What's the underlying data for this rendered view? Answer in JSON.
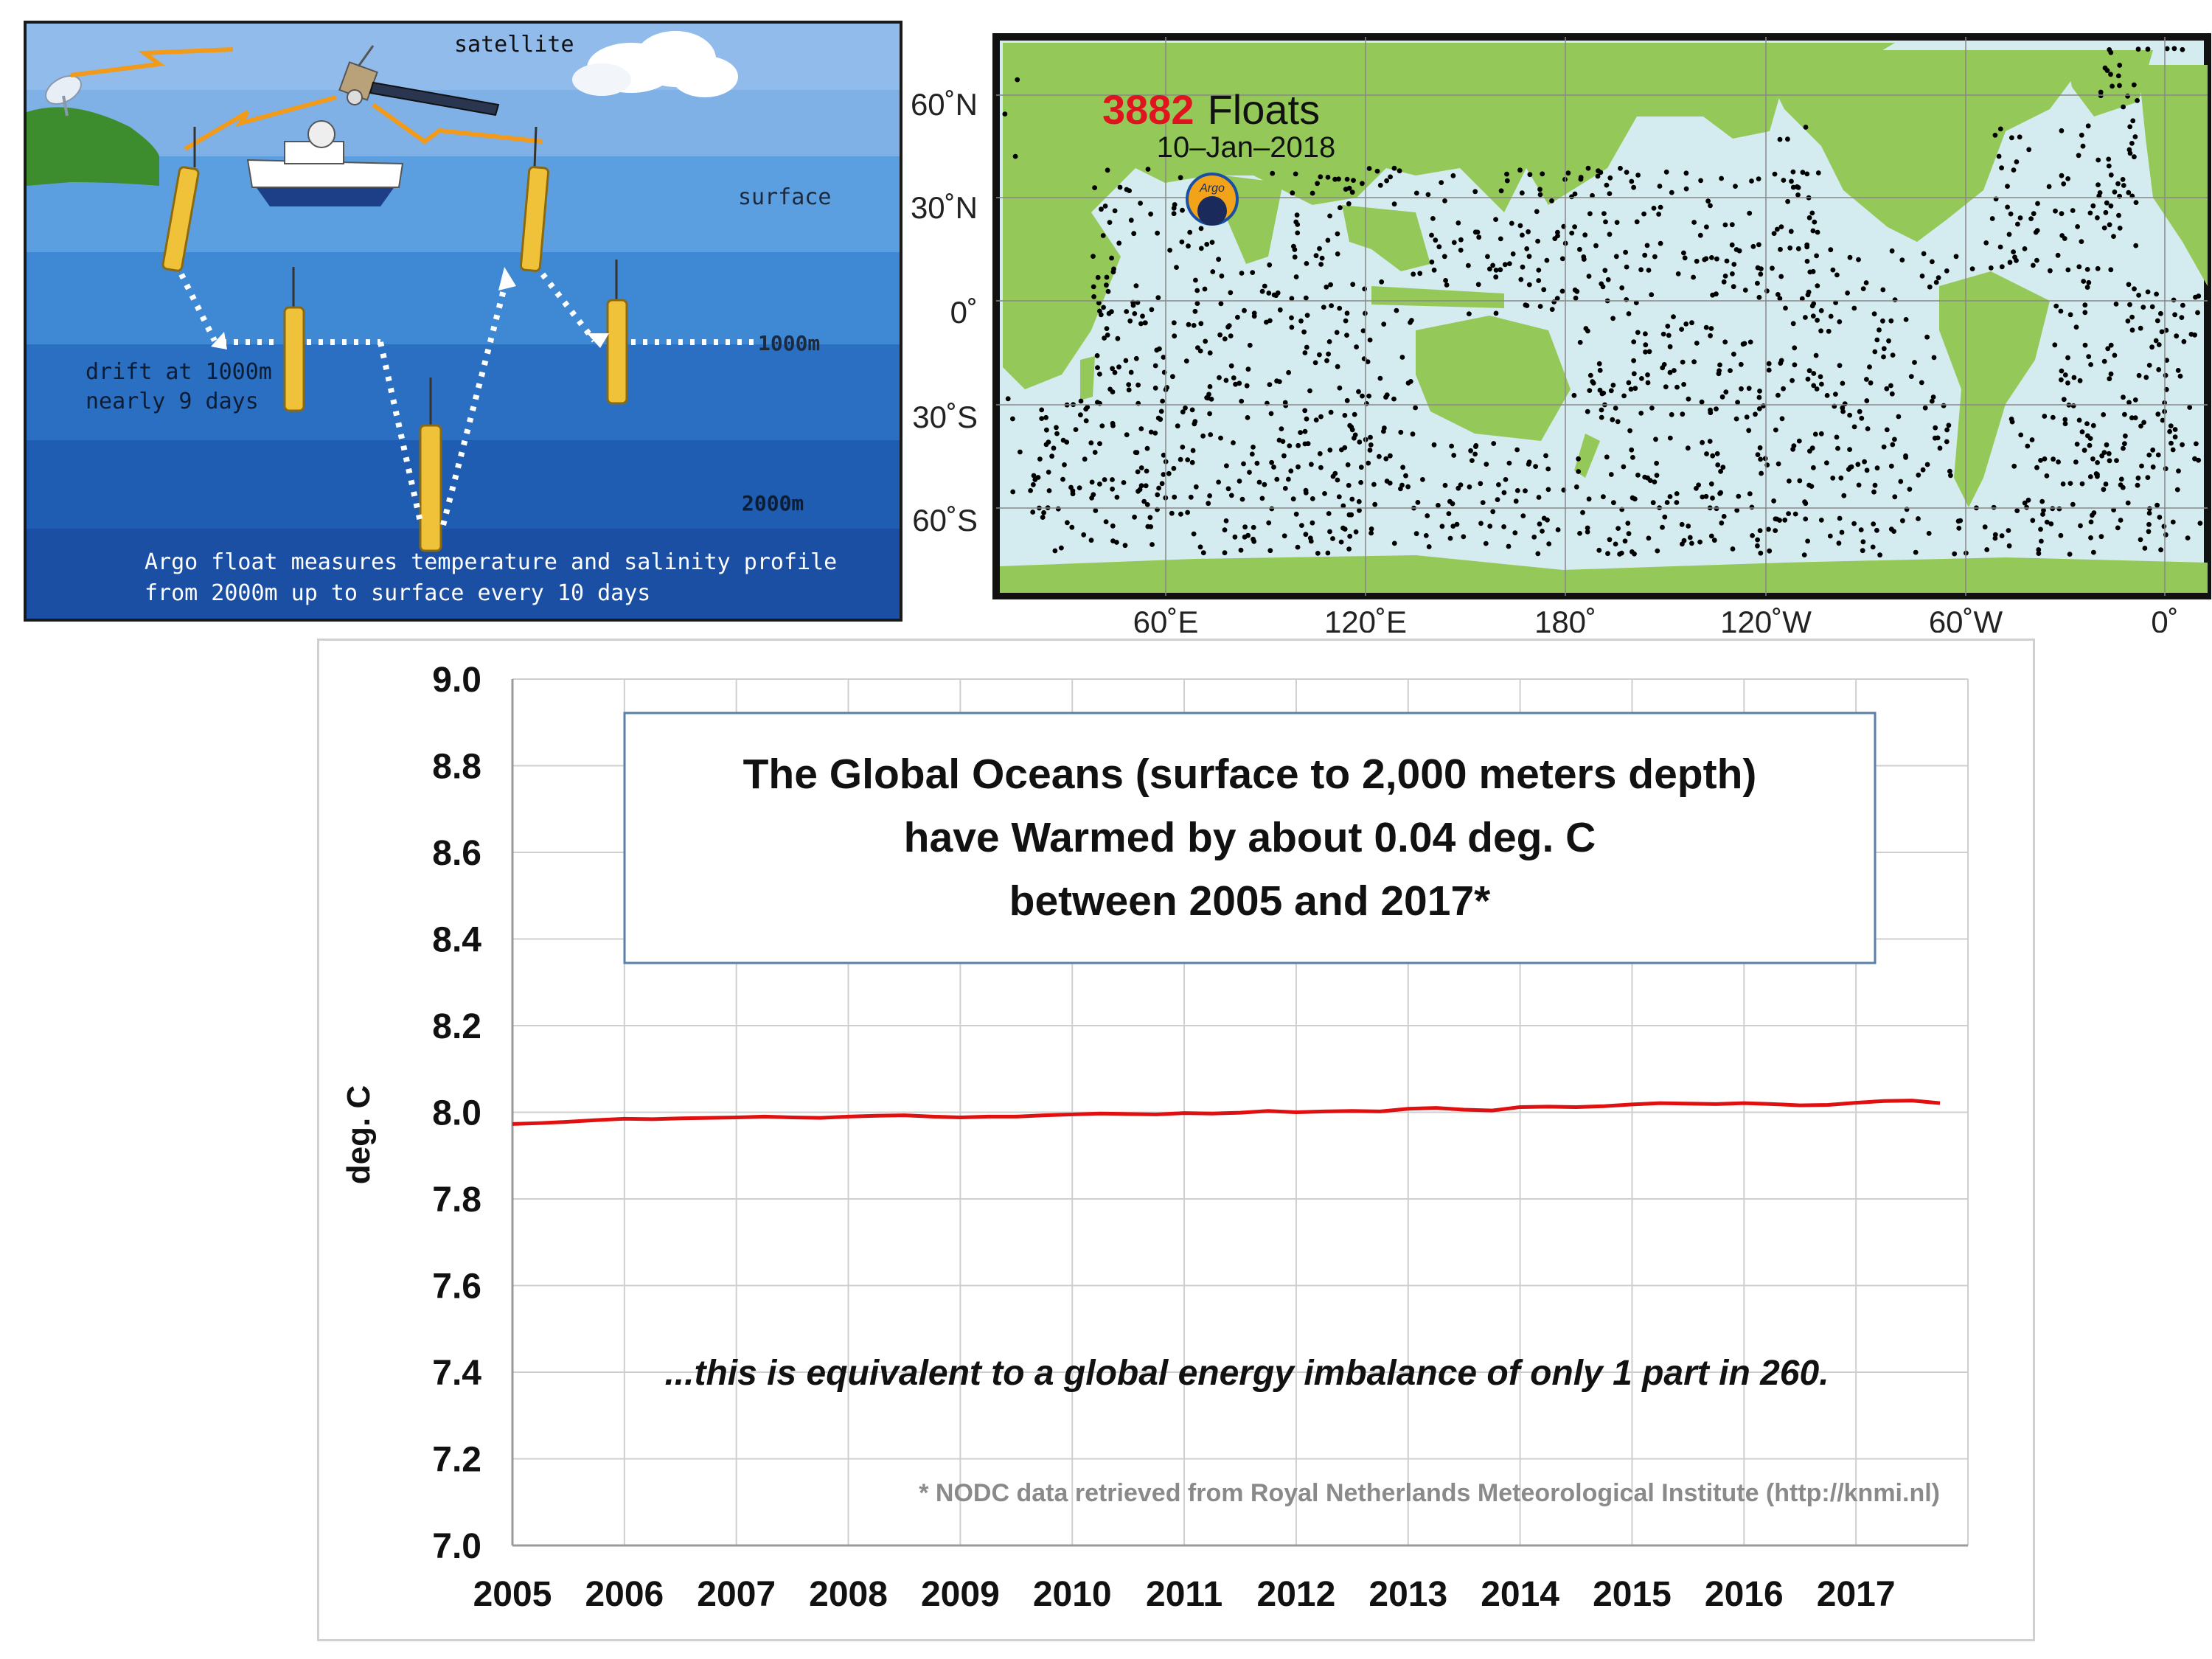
{
  "diagram": {
    "labels": {
      "satellite": "satellite",
      "surface": "surface",
      "depth_1000": "1000m",
      "depth_2000": "2000m",
      "drift_line1": "drift at 1000m",
      "drift_line2": "nearly 9 days",
      "caption_line1": "Argo float measures temperature and salinity profile",
      "caption_line2": "from 2000m up to surface every 10 days"
    },
    "colors": {
      "sky": "#7fb0e6",
      "surface_water": "#4f93d8",
      "mid_water": "#2f78c8",
      "deep_water": "#1e5bb0",
      "bottom_water": "#1748a0",
      "land": "#3d8c2e",
      "float": "#f0c23a"
    }
  },
  "map": {
    "count": "3882",
    "count_label": "Floats",
    "date": "10–Jan–2018",
    "logo_text": "Argo",
    "lat_labels": [
      "60˚N",
      "30˚N",
      "0˚",
      "30˚S",
      "60˚S"
    ],
    "lon_labels": [
      "60˚E",
      "120˚E",
      "180˚",
      "120˚W",
      "60˚W",
      "0˚"
    ],
    "colors": {
      "ocean": "#d4ecef",
      "land": "#94c95a",
      "dots": "#000000",
      "count": "#e0141e"
    }
  },
  "chart_data": {
    "type": "line",
    "title": "The Global Oceans (surface to 2,000 meters depth) have Warmed by about 0.04 deg. C between 2005 and 2017*",
    "title_lines": [
      "The Global Oceans (surface to 2,000 meters depth)",
      "have Warmed by about 0.04 deg. C",
      "between 2005 and 2017*"
    ],
    "annotation": "...this is equivalent to a global energy imbalance of only 1 part in 260.",
    "footnote": "* NODC data retrieved from Royal Netherlands Meteorological Institute (http://knmi.nl)",
    "xlabel": "",
    "ylabel": "deg. C",
    "ylim": [
      7.0,
      9.0
    ],
    "xlim": [
      2005,
      2018
    ],
    "y_ticks": [
      "9.0",
      "8.8",
      "8.6",
      "8.4",
      "8.2",
      "8.0",
      "7.8",
      "7.6",
      "7.4",
      "7.2",
      "7.0"
    ],
    "x_ticks": [
      "2005",
      "2006",
      "2007",
      "2008",
      "2009",
      "2010",
      "2011",
      "2012",
      "2013",
      "2014",
      "2015",
      "2016",
      "2017"
    ],
    "grid": true,
    "series": [
      {
        "color": "#e01010",
        "x": [
          2005.0,
          2005.25,
          2005.5,
          2005.75,
          2006.0,
          2006.25,
          2006.5,
          2006.75,
          2007.0,
          2007.25,
          2007.5,
          2007.75,
          2008.0,
          2008.25,
          2008.5,
          2008.75,
          2009.0,
          2009.25,
          2009.5,
          2009.75,
          2010.0,
          2010.25,
          2010.5,
          2010.75,
          2011.0,
          2011.25,
          2011.5,
          2011.75,
          2012.0,
          2012.25,
          2012.5,
          2012.75,
          2013.0,
          2013.25,
          2013.5,
          2013.75,
          2014.0,
          2014.25,
          2014.5,
          2014.75,
          2015.0,
          2015.25,
          2015.5,
          2015.75,
          2016.0,
          2016.25,
          2016.5,
          2016.75,
          2017.0,
          2017.25,
          2017.5,
          2017.75
        ],
        "values": [
          7.973,
          7.975,
          7.978,
          7.982,
          7.985,
          7.984,
          7.986,
          7.987,
          7.988,
          7.99,
          7.988,
          7.987,
          7.99,
          7.992,
          7.993,
          7.99,
          7.988,
          7.99,
          7.99,
          7.993,
          7.995,
          7.997,
          7.996,
          7.995,
          7.998,
          7.997,
          7.999,
          8.003,
          8.0,
          8.002,
          8.003,
          8.002,
          8.008,
          8.01,
          8.006,
          8.004,
          8.012,
          8.013,
          8.012,
          8.014,
          8.018,
          8.021,
          8.02,
          8.019,
          8.021,
          8.019,
          8.016,
          8.017,
          8.022,
          8.026,
          8.027,
          8.021
        ]
      }
    ]
  }
}
